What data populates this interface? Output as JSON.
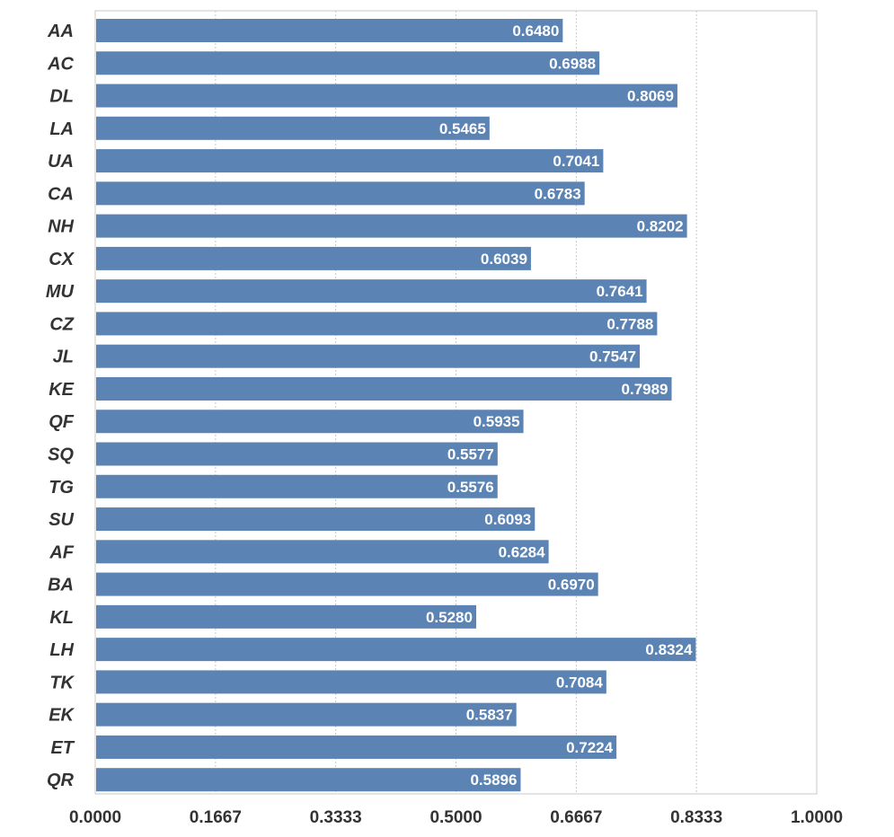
{
  "chart_data": {
    "type": "bar",
    "orientation": "horizontal",
    "categories": [
      "AA",
      "AC",
      "DL",
      "LA",
      "UA",
      "CA",
      "NH",
      "CX",
      "MU",
      "CZ",
      "JL",
      "KE",
      "QF",
      "SQ",
      "TG",
      "SU",
      "AF",
      "BA",
      "KL",
      "LH",
      "TK",
      "EK",
      "ET",
      "QR"
    ],
    "values": [
      0.648,
      0.6988,
      0.8069,
      0.5465,
      0.7041,
      0.6783,
      0.8202,
      0.6039,
      0.7641,
      0.7788,
      0.7547,
      0.7989,
      0.5935,
      0.5577,
      0.5576,
      0.6093,
      0.6284,
      0.697,
      0.528,
      0.8324,
      0.7084,
      0.5837,
      0.7224,
      0.5896
    ],
    "data_labels": [
      "0.6480",
      "0.6988",
      "0.8069",
      "0.5465",
      "0.7041",
      "0.6783",
      "0.8202",
      "0.6039",
      "0.7641",
      "0.7788",
      "0.7547",
      "0.7989",
      "0.5935",
      "0.5577",
      "0.5576",
      "0.6093",
      "0.6284",
      "0.6970",
      "0.5280",
      "0.8324",
      "0.7084",
      "0.5837",
      "0.7224",
      "0.5896"
    ],
    "xticks": [
      "0.0000",
      "0.1667",
      "0.3333",
      "0.5000",
      "0.6667",
      "0.8333",
      "1.0000"
    ],
    "xlim": [
      0,
      1
    ],
    "grid": "vertical dotted",
    "title": "",
    "xlabel": "",
    "ylabel": "",
    "bar_color": "#5b84b4",
    "grid_color": "#c8c8c8",
    "frame_color": "#c8c8c8"
  }
}
